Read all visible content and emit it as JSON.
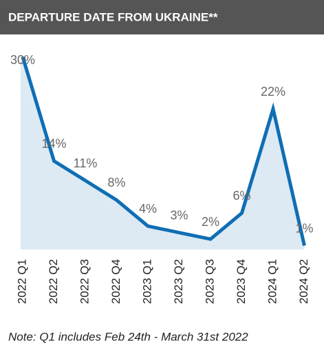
{
  "chart_data": {
    "type": "line",
    "title": "DEPARTURE DATE FROM UKRAINE**",
    "categories": [
      "2022 Q1",
      "2022 Q2",
      "2022 Q3",
      "2022 Q4",
      "2023 Q1",
      "2023 Q2",
      "2023 Q3",
      "2023 Q4",
      "2024 Q1",
      "2024 Q2"
    ],
    "values": [
      30,
      14,
      11,
      8,
      4,
      3,
      2,
      6,
      22,
      1
    ],
    "value_labels": [
      "30%",
      "14%",
      "11%",
      "8%",
      "4%",
      "3%",
      "2%",
      "6%",
      "22%",
      "1%"
    ],
    "color": "#0f6eb4",
    "area_color": "#dde9f3",
    "note": "Note: Q1 includes Feb 24th - March 31st 2022"
  }
}
